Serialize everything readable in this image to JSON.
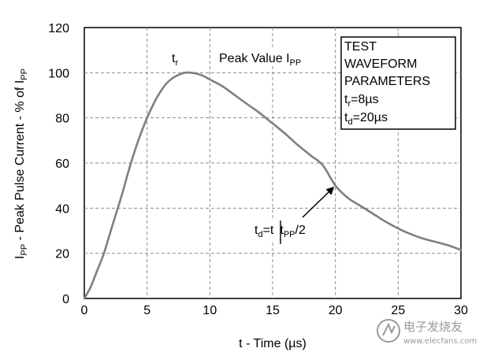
{
  "chart_data": {
    "type": "line",
    "title": "",
    "xlabel": "t - Time (µs)",
    "ylabel": {
      "main": "I",
      "sub": "PP",
      "rest": " - Peak Pulse Current - % of I",
      "sub2": "PP"
    },
    "xlim": [
      0,
      30
    ],
    "ylim": [
      0,
      120
    ],
    "xticks": [
      0,
      5,
      10,
      15,
      20,
      25,
      30
    ],
    "yticks": [
      0,
      20,
      40,
      60,
      80,
      100,
      120
    ],
    "grid": "dashed",
    "series": [
      {
        "name": "Test waveform",
        "x": [
          0,
          0.5,
          1,
          1.5,
          2,
          2.5,
          3,
          3.5,
          4,
          4.5,
          5,
          5.5,
          6,
          6.5,
          7,
          7.5,
          8,
          8.5,
          9,
          9.5,
          10,
          11,
          12,
          13,
          14,
          15,
          16,
          17,
          18,
          19,
          20,
          21,
          22,
          23,
          24,
          25,
          26,
          27,
          28,
          29,
          30
        ],
        "y": [
          0,
          5,
          12,
          19,
          28,
          37,
          46,
          56,
          65,
          73,
          80,
          86,
          91,
          95,
          97.5,
          99,
          100,
          100,
          99.5,
          98.5,
          97,
          94,
          90,
          86,
          82,
          77.5,
          73,
          68,
          63.5,
          59,
          50,
          44.5,
          41,
          37.5,
          34,
          31,
          28.5,
          26.5,
          25,
          23.5,
          21.5
        ]
      }
    ],
    "annotations": {
      "rise": {
        "main": "t",
        "sub": "r"
      },
      "peak": {
        "main": "Peak Value I",
        "sub": "PP"
      },
      "decay": {
        "main": "t",
        "sub": "d",
        "mid": "=t",
        "sub2": "PP",
        "rest": "/2"
      },
      "decay_point": {
        "x": 20,
        "y": 50
      }
    },
    "legend_box": {
      "placement": "top-right",
      "lines": [
        {
          "main": "TEST",
          "sub": "",
          "rest": ""
        },
        {
          "main": "WAVEFORM",
          "sub": "",
          "rest": ""
        },
        {
          "main": "PARAMETERS",
          "sub": "",
          "rest": ""
        },
        {
          "main": "t",
          "sub": "r",
          "rest": "=8µs"
        },
        {
          "main": "t",
          "sub": "d",
          "rest": "=20µs"
        }
      ]
    }
  },
  "watermark": {
    "brand": "电子发烧友",
    "url": "www.elecfans.com"
  },
  "colors": {
    "curve": "#7f7f7f",
    "frame": "#000000",
    "grid": "#8c8c8c",
    "watermark": "#9a9a9a"
  }
}
